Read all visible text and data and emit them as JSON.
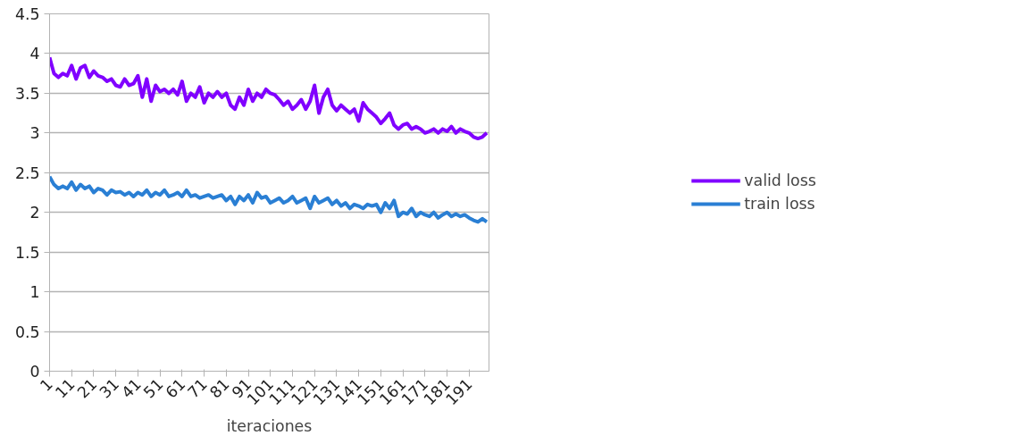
{
  "chart_data": {
    "type": "line",
    "xlabel": "iteraciones",
    "x": [
      1,
      3,
      5,
      7,
      9,
      11,
      13,
      15,
      17,
      19,
      21,
      23,
      25,
      27,
      29,
      31,
      33,
      35,
      37,
      39,
      41,
      43,
      45,
      47,
      49,
      51,
      53,
      55,
      57,
      59,
      61,
      63,
      65,
      67,
      69,
      71,
      73,
      75,
      77,
      79,
      81,
      83,
      85,
      87,
      89,
      91,
      93,
      95,
      97,
      99,
      101,
      103,
      105,
      107,
      109,
      111,
      113,
      115,
      117,
      119,
      121,
      123,
      125,
      127,
      129,
      131,
      133,
      135,
      137,
      139,
      141,
      143,
      145,
      147,
      149,
      151,
      153,
      155,
      157,
      159,
      161,
      163,
      165,
      167,
      169,
      171,
      173,
      175,
      177,
      179,
      181,
      183,
      185,
      187,
      189,
      191,
      193,
      195,
      197,
      199
    ],
    "xlim": [
      1,
      200
    ],
    "xticks": [
      1,
      11,
      21,
      31,
      41,
      51,
      61,
      71,
      81,
      91,
      101,
      111,
      121,
      131,
      141,
      151,
      161,
      171,
      181,
      191
    ],
    "ylim": [
      0,
      4.5
    ],
    "yticks": [
      0,
      0.5,
      1,
      1.5,
      2,
      2.5,
      3,
      3.5,
      4,
      4.5
    ],
    "grid": "y",
    "legend": "right",
    "marker": "none",
    "line_style": "solid",
    "series": [
      {
        "name": "valid loss",
        "color": "#8000ff",
        "values": [
          3.95,
          3.75,
          3.7,
          3.75,
          3.72,
          3.85,
          3.68,
          3.82,
          3.85,
          3.7,
          3.78,
          3.72,
          3.7,
          3.65,
          3.68,
          3.6,
          3.58,
          3.68,
          3.6,
          3.62,
          3.72,
          3.45,
          3.68,
          3.4,
          3.6,
          3.52,
          3.55,
          3.5,
          3.55,
          3.48,
          3.65,
          3.4,
          3.5,
          3.45,
          3.58,
          3.38,
          3.5,
          3.45,
          3.52,
          3.45,
          3.5,
          3.35,
          3.3,
          3.45,
          3.35,
          3.55,
          3.4,
          3.5,
          3.45,
          3.55,
          3.5,
          3.48,
          3.42,
          3.35,
          3.4,
          3.3,
          3.35,
          3.42,
          3.3,
          3.4,
          3.6,
          3.25,
          3.45,
          3.55,
          3.35,
          3.28,
          3.35,
          3.3,
          3.25,
          3.3,
          3.15,
          3.38,
          3.3,
          3.25,
          3.2,
          3.12,
          3.18,
          3.25,
          3.1,
          3.05,
          3.1,
          3.12,
          3.05,
          3.08,
          3.05,
          3.0,
          3.02,
          3.05,
          3.0,
          3.05,
          3.02,
          3.08,
          3.0,
          3.05,
          3.02,
          3.0,
          2.95,
          2.93,
          2.95,
          3.0
        ]
      },
      {
        "name": "train loss",
        "color": "#2a7fd4",
        "values": [
          2.45,
          2.35,
          2.3,
          2.33,
          2.3,
          2.38,
          2.28,
          2.35,
          2.3,
          2.33,
          2.25,
          2.3,
          2.28,
          2.22,
          2.28,
          2.25,
          2.26,
          2.22,
          2.25,
          2.2,
          2.25,
          2.22,
          2.28,
          2.2,
          2.25,
          2.22,
          2.28,
          2.2,
          2.22,
          2.25,
          2.2,
          2.28,
          2.2,
          2.22,
          2.18,
          2.2,
          2.22,
          2.18,
          2.2,
          2.22,
          2.15,
          2.2,
          2.1,
          2.2,
          2.15,
          2.22,
          2.12,
          2.25,
          2.18,
          2.2,
          2.12,
          2.15,
          2.18,
          2.12,
          2.15,
          2.2,
          2.12,
          2.15,
          2.18,
          2.05,
          2.2,
          2.12,
          2.15,
          2.18,
          2.1,
          2.15,
          2.08,
          2.12,
          2.05,
          2.1,
          2.08,
          2.05,
          2.1,
          2.08,
          2.1,
          2.0,
          2.12,
          2.05,
          2.15,
          1.95,
          2.0,
          1.98,
          2.05,
          1.95,
          2.0,
          1.97,
          1.95,
          2.0,
          1.93,
          1.97,
          2.0,
          1.95,
          1.98,
          1.95,
          1.97,
          1.93,
          1.9,
          1.88,
          1.92,
          1.88
        ]
      }
    ]
  }
}
